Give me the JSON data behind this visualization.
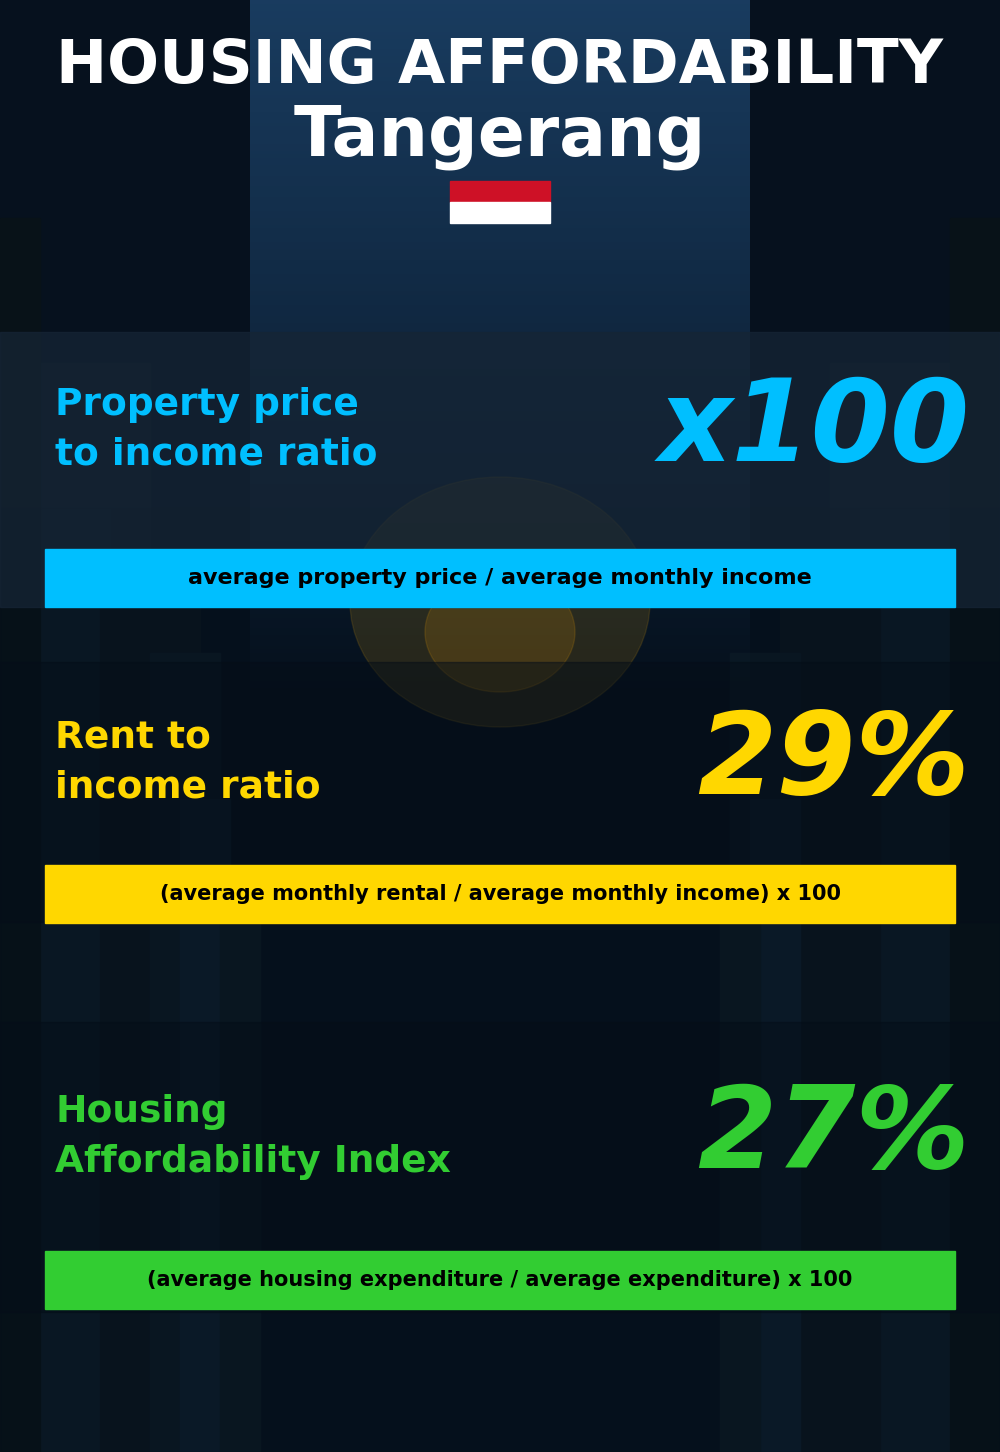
{
  "title_line1": "HOUSING AFFORDABILITY",
  "title_line2": "Tangerang",
  "section1_label": "Property price\nto income ratio",
  "section1_value": "x100",
  "section1_formula": "average property price / average monthly income",
  "section1_label_color": "#00BFFF",
  "section1_value_color": "#00BFFF",
  "section1_bg_color": "#00BFFF",
  "section2_label": "Rent to\nincome ratio",
  "section2_value": "29%",
  "section2_formula": "(average monthly rental / average monthly income) x 100",
  "section2_label_color": "#FFD700",
  "section2_value_color": "#FFD700",
  "section2_bg_color": "#FFD700",
  "section3_label": "Housing\nAffordability Index",
  "section3_value": "27%",
  "section3_formula": "(average housing expenditure / average expenditure) x 100",
  "section3_label_color": "#32CD32",
  "section3_value_color": "#32CD32",
  "section3_bg_color": "#32CD32",
  "bg_color": "#06111e",
  "text_color_white": "#FFFFFF",
  "text_color_black": "#000000",
  "flag_red": "#CE1126",
  "flag_white": "#FFFFFF",
  "section_overlay_color": "#162030",
  "figwidth": 10.0,
  "figheight": 14.52,
  "dpi": 100
}
